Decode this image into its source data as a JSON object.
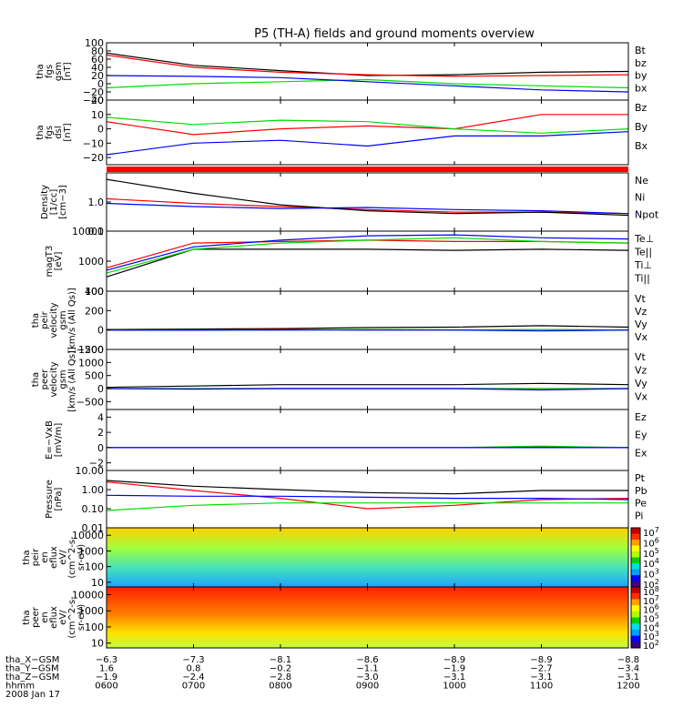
{
  "title": "P5 (TH-A) fields and ground moments overview",
  "colors": {
    "black": "#000000",
    "red": "#ff0000",
    "green": "#00dd00",
    "blue": "#0000ff"
  },
  "chart_data": {
    "type": "line",
    "time_range": [
      "0600",
      "1200"
    ],
    "panels": [
      {
        "id": "fgs-gsm",
        "ylabel": [
          "tha",
          "fgs",
          "gsm",
          "[nT]"
        ],
        "ticks": [
          100,
          80,
          60,
          40,
          20,
          0,
          -20,
          -40
        ],
        "tick_labels": [
          "100",
          "80",
          "60",
          "40",
          "20",
          "0",
          "−20",
          "−40"
        ],
        "ylim": [
          -40,
          100
        ],
        "series": [
          {
            "name": "Bt",
            "color": "#000000",
            "times": [
              "0600",
              "0700",
              "0800",
              "0900",
              "1000",
              "1100",
              "1200"
            ],
            "values": [
              75,
              45,
              32,
              20,
              22,
              28,
              30
            ]
          },
          {
            "name": "bz",
            "color": "#ff0000",
            "times": [
              "0600",
              "0700",
              "0800",
              "0900",
              "1000",
              "1100",
              "1200"
            ],
            "values": [
              70,
              40,
              28,
              22,
              18,
              20,
              22
            ]
          },
          {
            "name": "by",
            "color": "#00dd00",
            "times": [
              "0600",
              "0700",
              "0800",
              "0900",
              "1000",
              "1100",
              "1200"
            ],
            "values": [
              -10,
              0,
              5,
              10,
              0,
              -5,
              -10
            ]
          },
          {
            "name": "bx",
            "color": "#0000ff",
            "times": [
              "0600",
              "0700",
              "0800",
              "0900",
              "1000",
              "1100",
              "1200"
            ],
            "values": [
              20,
              18,
              15,
              5,
              -5,
              -15,
              -20
            ]
          }
        ]
      },
      {
        "id": "fgs-dsl",
        "ylabel": [
          "tha",
          "fgs",
          "dsl",
          "[nT]"
        ],
        "ticks": [
          20,
          10,
          0,
          -10,
          -20
        ],
        "tick_labels": [
          "20",
          "10",
          "0",
          "−10",
          "−20"
        ],
        "ylim": [
          -25,
          20
        ],
        "series": [
          {
            "name": "Bz",
            "color": "#ff0000",
            "times": [
              "0600",
              "0700",
              "0800",
              "0900",
              "1000",
              "1100",
              "1200"
            ],
            "values": [
              5,
              -4,
              0,
              2,
              0,
              10,
              10
            ]
          },
          {
            "name": "By",
            "color": "#00dd00",
            "times": [
              "0600",
              "0700",
              "0800",
              "0900",
              "1000",
              "1100",
              "1200"
            ],
            "values": [
              8,
              3,
              6,
              5,
              0,
              -3,
              0
            ]
          },
          {
            "name": "Bx",
            "color": "#0000ff",
            "times": [
              "0600",
              "0700",
              "0800",
              "0900",
              "1000",
              "1100",
              "1200"
            ],
            "values": [
              -18,
              -10,
              -8,
              -12,
              -5,
              -5,
              -2
            ]
          }
        ]
      },
      {
        "id": "density",
        "ylabel": [
          "Density",
          "[1/cc]",
          "[cm−3]"
        ],
        "log": true,
        "ticks": [
          1,
          0.1
        ],
        "tick_labels": [
          "1.0",
          "0.1"
        ],
        "ylim": [
          0.1,
          10
        ],
        "series": [
          {
            "name": "Ne",
            "color": "#ff0000",
            "times": [
              "0600",
              "0700",
              "0800",
              "0900",
              "1000",
              "1100",
              "1200"
            ],
            "values": [
              1.3,
              0.9,
              0.7,
              0.55,
              0.45,
              0.45,
              0.4
            ]
          },
          {
            "name": "Ni",
            "color": "#000000",
            "times": [
              "0600",
              "0700",
              "0800",
              "0900",
              "1000",
              "1100",
              "1200"
            ],
            "values": [
              6,
              2,
              0.8,
              0.5,
              0.4,
              0.45,
              0.35
            ]
          },
          {
            "name": "Npot",
            "color": "#0000ff",
            "times": [
              "0600",
              "0700",
              "0800",
              "0900",
              "1000",
              "1100",
              "1200"
            ],
            "values": [
              0.9,
              0.7,
              0.6,
              0.65,
              0.55,
              0.5,
              0.4
            ]
          }
        ]
      },
      {
        "id": "temperature",
        "ylabel": [
          "magT3",
          "[eV]"
        ],
        "log": true,
        "ticks": [
          10000,
          1000,
          100
        ],
        "tick_labels": [
          "10000",
          "1000",
          "100"
        ],
        "ylim": [
          100,
          10000
        ],
        "series": [
          {
            "name": "Te⊥",
            "color": "#ff0000",
            "times": [
              "0600",
              "0700",
              "0800",
              "0900",
              "1000",
              "1100",
              "1200"
            ],
            "values": [
              600,
              4000,
              4500,
              5000,
              4500,
              4500,
              4000
            ]
          },
          {
            "name": "Te||",
            "color": "#000000",
            "times": [
              "0600",
              "0700",
              "0800",
              "0900",
              "1000",
              "1100",
              "1200"
            ],
            "values": [
              300,
              2500,
              2500,
              2500,
              2300,
              2500,
              2300
            ]
          },
          {
            "name": "Ti⊥",
            "color": "#0000ff",
            "times": [
              "0600",
              "0700",
              "0800",
              "0900",
              "1000",
              "1100",
              "1200"
            ],
            "values": [
              500,
              3000,
              5000,
              7000,
              7500,
              6000,
              5500
            ]
          },
          {
            "name": "Ti||",
            "color": "#00dd00",
            "times": [
              "0600",
              "0700",
              "0800",
              "0900",
              "1000",
              "1100",
              "1200"
            ],
            "values": [
              400,
              2500,
              4000,
              5000,
              6000,
              4500,
              4000
            ]
          }
        ]
      },
      {
        "id": "peir-velocity",
        "ylabel": [
          "tha",
          "peir",
          "velocity",
          "gsm",
          "[km/s (All Qs)]"
        ],
        "ticks": [
          400,
          200,
          0,
          -200
        ],
        "tick_labels": [
          "400",
          "200",
          "0",
          "−200"
        ],
        "ylim": [
          -200,
          400
        ],
        "series": [
          {
            "name": "Vt",
            "color": "#000000",
            "times": [
              "0600",
              "0700",
              "0800",
              "0900",
              "1000",
              "1100",
              "1200"
            ],
            "values": [
              5,
              10,
              15,
              25,
              30,
              45,
              30
            ]
          },
          {
            "name": "Vz",
            "color": "#ff0000",
            "times": [
              "0600",
              "0700",
              "0800",
              "0900",
              "1000",
              "1100",
              "1200"
            ],
            "values": [
              0,
              0,
              5,
              0,
              0,
              5,
              0
            ]
          },
          {
            "name": "Vy",
            "color": "#00dd00",
            "times": [
              "0600",
              "0700",
              "0800",
              "0900",
              "1000",
              "1100",
              "1200"
            ],
            "values": [
              0,
              2,
              0,
              5,
              2,
              5,
              0
            ]
          },
          {
            "name": "Vx",
            "color": "#0000ff",
            "times": [
              "0600",
              "0700",
              "0800",
              "0900",
              "1000",
              "1100",
              "1200"
            ],
            "values": [
              0,
              -2,
              0,
              0,
              0,
              -10,
              0
            ]
          }
        ]
      },
      {
        "id": "peer-velocity",
        "ylabel": [
          "tha",
          "peer",
          "velocity",
          "gsm",
          "[km/s (All Qs)]"
        ],
        "ticks": [
          1500,
          1000,
          500,
          0,
          -500
        ],
        "tick_labels": [
          "1500",
          "1000",
          "500",
          "0",
          "−500"
        ],
        "ylim": [
          -800,
          1500
        ],
        "series": [
          {
            "name": "Vt",
            "color": "#000000",
            "times": [
              "0600",
              "0700",
              "0800",
              "0900",
              "1000",
              "1100",
              "1200"
            ],
            "values": [
              50,
              100,
              150,
              150,
              150,
              200,
              150
            ]
          },
          {
            "name": "Vz",
            "color": "#ff0000",
            "times": [
              "0600",
              "0700",
              "0800",
              "0900",
              "1000",
              "1100",
              "1200"
            ],
            "values": [
              0,
              0,
              0,
              0,
              0,
              0,
              0
            ]
          },
          {
            "name": "Vy",
            "color": "#00dd00",
            "times": [
              "0600",
              "0700",
              "0800",
              "0900",
              "1000",
              "1100",
              "1200"
            ],
            "values": [
              0,
              0,
              0,
              0,
              0,
              0,
              0
            ]
          },
          {
            "name": "Vx",
            "color": "#0000ff",
            "times": [
              "0600",
              "0700",
              "0800",
              "0900",
              "1000",
              "1100",
              "1200"
            ],
            "values": [
              0,
              -20,
              0,
              0,
              0,
              -50,
              0
            ]
          }
        ]
      },
      {
        "id": "efield",
        "ylabel": [
          "E=−VxB",
          "[mV/m]"
        ],
        "ticks": [
          4,
          2,
          0,
          -2
        ],
        "tick_labels": [
          "4",
          "2",
          "0",
          "−2"
        ],
        "ylim": [
          -3,
          5
        ],
        "series": [
          {
            "name": "Ez",
            "color": "#ff0000",
            "times": [
              "0600",
              "0700",
              "0800",
              "0900",
              "1000",
              "1100",
              "1200"
            ],
            "values": [
              0,
              0,
              0,
              0,
              0,
              0.1,
              0
            ]
          },
          {
            "name": "Ey",
            "color": "#00dd00",
            "times": [
              "0600",
              "0700",
              "0800",
              "0900",
              "1000",
              "1100",
              "1200"
            ],
            "values": [
              0,
              0,
              0,
              0,
              0,
              0.2,
              0
            ]
          },
          {
            "name": "Ex",
            "color": "#0000ff",
            "times": [
              "0600",
              "0700",
              "0800",
              "0900",
              "1000",
              "1100",
              "1200"
            ],
            "values": [
              0,
              0,
              0,
              0,
              0,
              0,
              0
            ]
          }
        ]
      },
      {
        "id": "pressure",
        "ylabel": [
          "Pressure",
          "[nPa]"
        ],
        "log": true,
        "ticks": [
          10,
          1,
          0.1,
          0.01
        ],
        "tick_labels": [
          "10.00",
          "1.00",
          "0.10",
          "0.01"
        ],
        "ylim": [
          0.01,
          10
        ],
        "series": [
          {
            "name": "Pt",
            "color": "#000000",
            "times": [
              "0600",
              "0700",
              "0800",
              "0900",
              "1000",
              "1100",
              "1200"
            ],
            "values": [
              3,
              1.5,
              1.0,
              0.7,
              0.6,
              0.9,
              0.9
            ]
          },
          {
            "name": "Pb",
            "color": "#ff0000",
            "times": [
              "0600",
              "0700",
              "0800",
              "0900",
              "1000",
              "1100",
              "1200"
            ],
            "values": [
              2.5,
              0.9,
              0.35,
              0.1,
              0.15,
              0.3,
              0.35
            ]
          },
          {
            "name": "Pe",
            "color": "#00dd00",
            "times": [
              "0600",
              "0700",
              "0800",
              "0900",
              "1000",
              "1100",
              "1200"
            ],
            "values": [
              0.08,
              0.15,
              0.2,
              0.2,
              0.2,
              0.2,
              0.2
            ]
          },
          {
            "name": "Pi",
            "color": "#0000ff",
            "times": [
              "0600",
              "0700",
              "0800",
              "0900",
              "1000",
              "1100",
              "1200"
            ],
            "values": [
              0.5,
              0.45,
              0.45,
              0.4,
              0.35,
              0.35,
              0.3
            ]
          }
        ]
      }
    ],
    "spectrograms": [
      {
        "id": "peir-eflux",
        "ylabel": [
          "tha",
          "peir",
          "en",
          "eflux",
          "eV/",
          "(cm^2-s-",
          "sr-eV)"
        ],
        "ticks": [
          10000,
          1000,
          100,
          10
        ],
        "tick_labels": [
          "10000",
          "1000",
          "100",
          "10"
        ],
        "colorbar": {
          "ticks": [
            "10^7",
            "10^6",
            "10^5",
            "10^4",
            "10^3",
            "10^2"
          ]
        }
      },
      {
        "id": "peer-eflux",
        "ylabel": [
          "tha",
          "peer",
          "en",
          "eflux",
          "eV/",
          "(cm^2-s-",
          "sr-eV)"
        ],
        "ticks": [
          10000,
          1000,
          100,
          10
        ],
        "tick_labels": [
          "10000",
          "1000",
          "100",
          "10"
        ],
        "colorbar": {
          "ticks": [
            "10^8",
            "10^7",
            "10^6",
            "10^5",
            "10^4",
            "10^3",
            "10^2"
          ]
        }
      }
    ],
    "footer": {
      "rows": [
        {
          "label": "tha_X−GSM",
          "values": [
            "−6.3",
            "−7.3",
            "−8.1",
            "−8.6",
            "−8.9",
            "−8.9",
            "−8.8"
          ]
        },
        {
          "label": "tha_Y−GSM",
          "values": [
            "1.6",
            "0.8",
            "−0.2",
            "−1.1",
            "−1.9",
            "−2.7",
            "−3.4"
          ]
        },
        {
          "label": "tha_Z−GSM",
          "values": [
            "−1.9",
            "−2.4",
            "−2.8",
            "−3.0",
            "−3.1",
            "−3.1",
            "−3.1"
          ]
        },
        {
          "label": "hhmm",
          "values": [
            "0600",
            "0700",
            "0800",
            "0900",
            "1000",
            "1100",
            "1200"
          ]
        }
      ],
      "date": "2008 Jan 17"
    }
  }
}
